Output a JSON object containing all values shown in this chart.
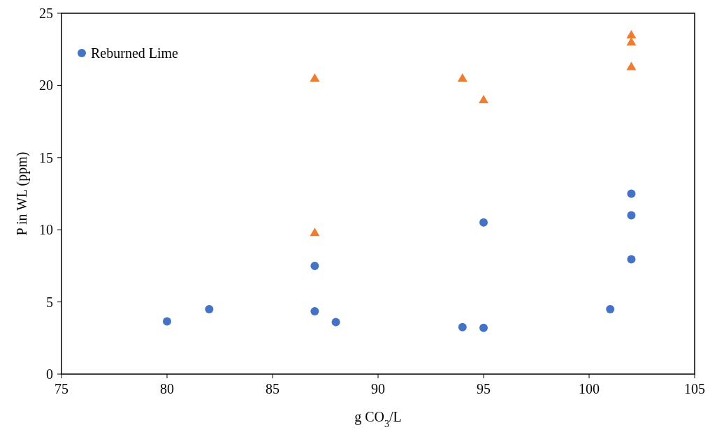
{
  "chart_data": {
    "type": "scatter",
    "xlabel": "g CO$_{3}$/L",
    "ylabel": "P in WL (ppm)",
    "xlim": [
      75,
      105
    ],
    "xticks": [
      75,
      80,
      85,
      90,
      95,
      100,
      105
    ],
    "ylim": [
      0,
      25
    ],
    "yticks": [
      0,
      5,
      10,
      15,
      20,
      25
    ],
    "grid": false,
    "legend": "top left",
    "series": [
      {
        "name": "Reburned Lime",
        "color": "#4472c4",
        "marker": "circle",
        "x": [
          80,
          82,
          87,
          87,
          88,
          94,
          95,
          95,
          101,
          102,
          102,
          102
        ],
        "values": [
          3.65,
          4.5,
          7.5,
          4.35,
          3.6,
          3.25,
          3.2,
          10.5,
          4.5,
          12.5,
          11.0,
          7.95
        ]
      },
      {
        "color": "#ed7d31",
        "marker": "triangle",
        "x": [
          87,
          87,
          94,
          95,
          102,
          102,
          102
        ],
        "values": [
          20.5,
          9.8,
          20.5,
          19.0,
          23.5,
          23.0,
          21.3
        ]
      }
    ]
  }
}
